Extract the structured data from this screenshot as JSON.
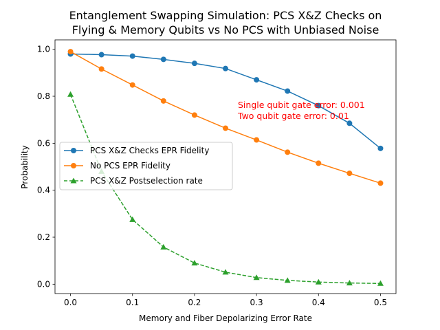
{
  "chart_data": {
    "type": "line",
    "title": [
      "Entanglement Swapping Simulation: PCS X&Z Checks on",
      "Flying & Memory Qubits vs No PCS with Unbiased Noise"
    ],
    "xlabel": "Memory and Fiber Depolarizing Error Rate",
    "ylabel": "Probability",
    "xlim": [
      -0.025,
      0.525
    ],
    "ylim": [
      -0.04,
      1.04
    ],
    "xticks": [
      0.0,
      0.1,
      0.2,
      0.3,
      0.4,
      0.5
    ],
    "xtick_labels": [
      "0.0",
      "0.1",
      "0.2",
      "0.3",
      "0.4",
      "0.5"
    ],
    "yticks": [
      0.0,
      0.2,
      0.4,
      0.6,
      0.8,
      1.0
    ],
    "ytick_labels": [
      "0.0",
      "0.2",
      "0.4",
      "0.6",
      "0.8",
      "1.0"
    ],
    "grid": false,
    "legend_position": "center-left",
    "x": [
      0.0,
      0.05,
      0.1,
      0.15,
      0.2,
      0.25,
      0.3,
      0.35,
      0.4,
      0.45,
      0.5
    ],
    "series": [
      {
        "name": "PCS X&Z Checks EPR Fidelity",
        "color": "#1f77b4",
        "linestyle": "solid",
        "marker": "circle",
        "values": [
          0.98,
          0.977,
          0.971,
          0.957,
          0.94,
          0.918,
          0.87,
          0.822,
          0.76,
          0.685,
          0.578
        ]
      },
      {
        "name": "No PCS EPR Fidelity",
        "color": "#ff7f0e",
        "linestyle": "solid",
        "marker": "circle",
        "values": [
          0.99,
          0.916,
          0.848,
          0.78,
          0.72,
          0.664,
          0.614,
          0.562,
          0.515,
          0.472,
          0.43
        ]
      },
      {
        "name": "PCS X&Z Postselection rate",
        "color": "#2ca02c",
        "linestyle": "dashed",
        "marker": "triangle",
        "values": [
          0.808,
          0.48,
          0.275,
          0.158,
          0.09,
          0.051,
          0.028,
          0.016,
          0.009,
          0.005,
          0.003
        ]
      }
    ],
    "annotations": [
      {
        "text": "Single qubit gate error: 0.001",
        "x": 0.27,
        "y": 0.76,
        "color": "#ff0000"
      },
      {
        "text": "Two qubit gate error: 0.01",
        "x": 0.27,
        "y": 0.71,
        "color": "#ff0000"
      }
    ]
  }
}
